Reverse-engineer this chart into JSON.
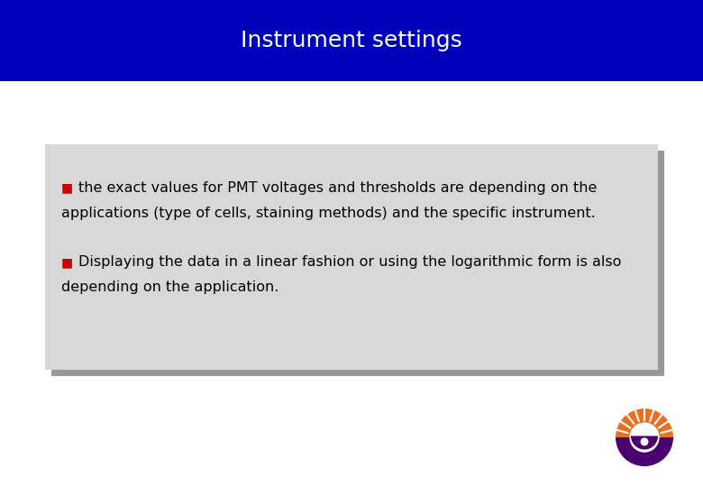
{
  "title": "Instrument settings",
  "title_color": "#ffffff",
  "title_bg_color": "#0000bb",
  "title_fontsize": 18,
  "slide_bg_color": "#ffffff",
  "box_bg_color": "#d8d8d8",
  "shadow_color": "#999999",
  "bullet_color": "#cc0000",
  "text_color": "#000000",
  "text_fontsize": 11.5,
  "bullet1_line1": "the exact values for PMT voltages and thresholds are depending on the",
  "bullet1_line2": "applications (type of cells, staining methods) and the specific instrument.",
  "bullet2_line1": "Displaying the data in a linear fashion or using the logarithmic form is also",
  "bullet2_line2": "depending on the application.",
  "logo_orange": "#e87020",
  "logo_purple": "#4b0070"
}
